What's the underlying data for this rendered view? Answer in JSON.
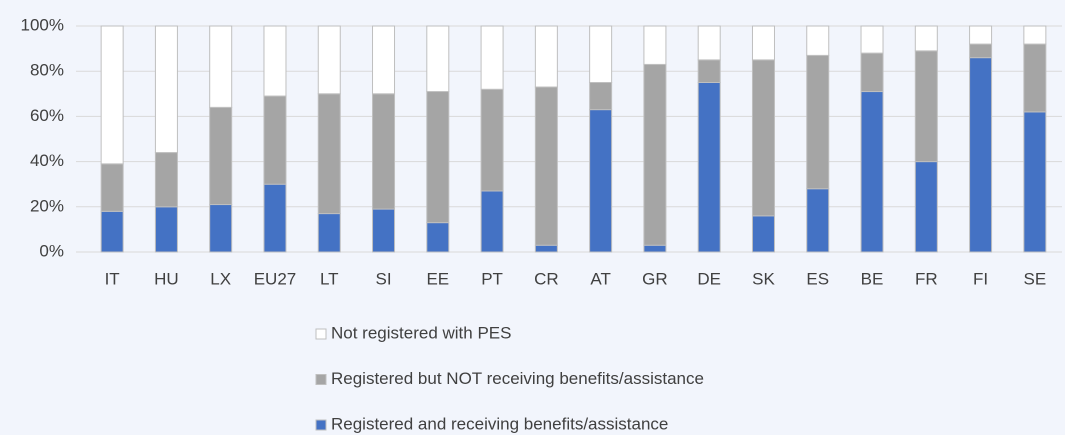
{
  "chart_data": {
    "type": "bar",
    "stacked": true,
    "categories": [
      "IT",
      "HU",
      "LX",
      "EU27",
      "LT",
      "SI",
      "EE",
      "PT",
      "CR",
      "AT",
      "GR",
      "DE",
      "SK",
      "ES",
      "BE",
      "FR",
      "FI",
      "SE"
    ],
    "series": [
      {
        "name": "Registered and receiving benefits/assistance",
        "color": "#4472c4",
        "values": [
          18,
          20,
          21,
          30,
          17,
          19,
          13,
          27,
          3,
          63,
          3,
          75,
          16,
          28,
          71,
          40,
          86,
          62
        ]
      },
      {
        "name": "Registered but NOT receiving benefits/assistance",
        "color": "#a5a5a5",
        "values": [
          21,
          24,
          43,
          39,
          53,
          51,
          58,
          45,
          70,
          12,
          80,
          10,
          69,
          59,
          17,
          49,
          6,
          30
        ]
      },
      {
        "name": "Not registered with PES",
        "color": "#ffffff",
        "values": [
          61,
          56,
          36,
          31,
          30,
          30,
          29,
          28,
          27,
          25,
          17,
          15,
          15,
          13,
          12,
          11,
          8,
          8
        ]
      }
    ],
    "ylim": [
      0,
      100
    ],
    "yticks": [
      {
        "value": 0,
        "label": "0%"
      },
      {
        "value": 20,
        "label": "20%"
      },
      {
        "value": 40,
        "label": "40%"
      },
      {
        "value": 60,
        "label": "60%"
      },
      {
        "value": 80,
        "label": "80%"
      },
      {
        "value": 100,
        "label": "100%"
      }
    ],
    "grid": true
  }
}
